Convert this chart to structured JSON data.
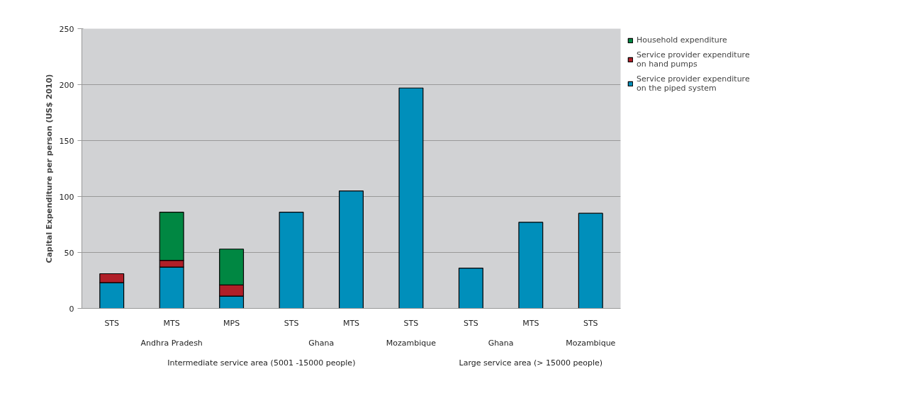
{
  "chart_data": {
    "type": "bar",
    "stacked": true,
    "ylabel": "Capital Expenditure per person (US$ 2010)",
    "categories": [
      "STS",
      "MTS",
      "MPS",
      "STS",
      "MTS",
      "STS",
      "STS",
      "MTS",
      "STS"
    ],
    "series": [
      {
        "name": "Service provider expenditure on the piped system",
        "color": "#008fbb",
        "values": [
          23,
          37,
          11,
          86,
          105,
          197,
          36,
          77,
          85
        ]
      },
      {
        "name": "Service provider expenditure on hand pumps",
        "color": "#b01f28",
        "values": [
          8,
          6,
          10,
          null,
          null,
          null,
          null,
          null,
          null
        ]
      },
      {
        "name": "Household expenditure",
        "color": "#008742",
        "values": [
          null,
          43,
          32,
          null,
          null,
          null,
          null,
          null,
          null
        ]
      }
    ],
    "annotations": [
      "Andhra Pradesh",
      "Ghana",
      "Mozambique",
      "Ghana",
      "Mozambique",
      "Intermediate service area (5001 -15000 people)",
      "Large service area (> 15000 people)"
    ],
    "ylim": [
      0,
      250
    ],
    "yticks": [
      0,
      50,
      100,
      150,
      200,
      250
    ],
    "grid": "y",
    "legend": "top right"
  }
}
